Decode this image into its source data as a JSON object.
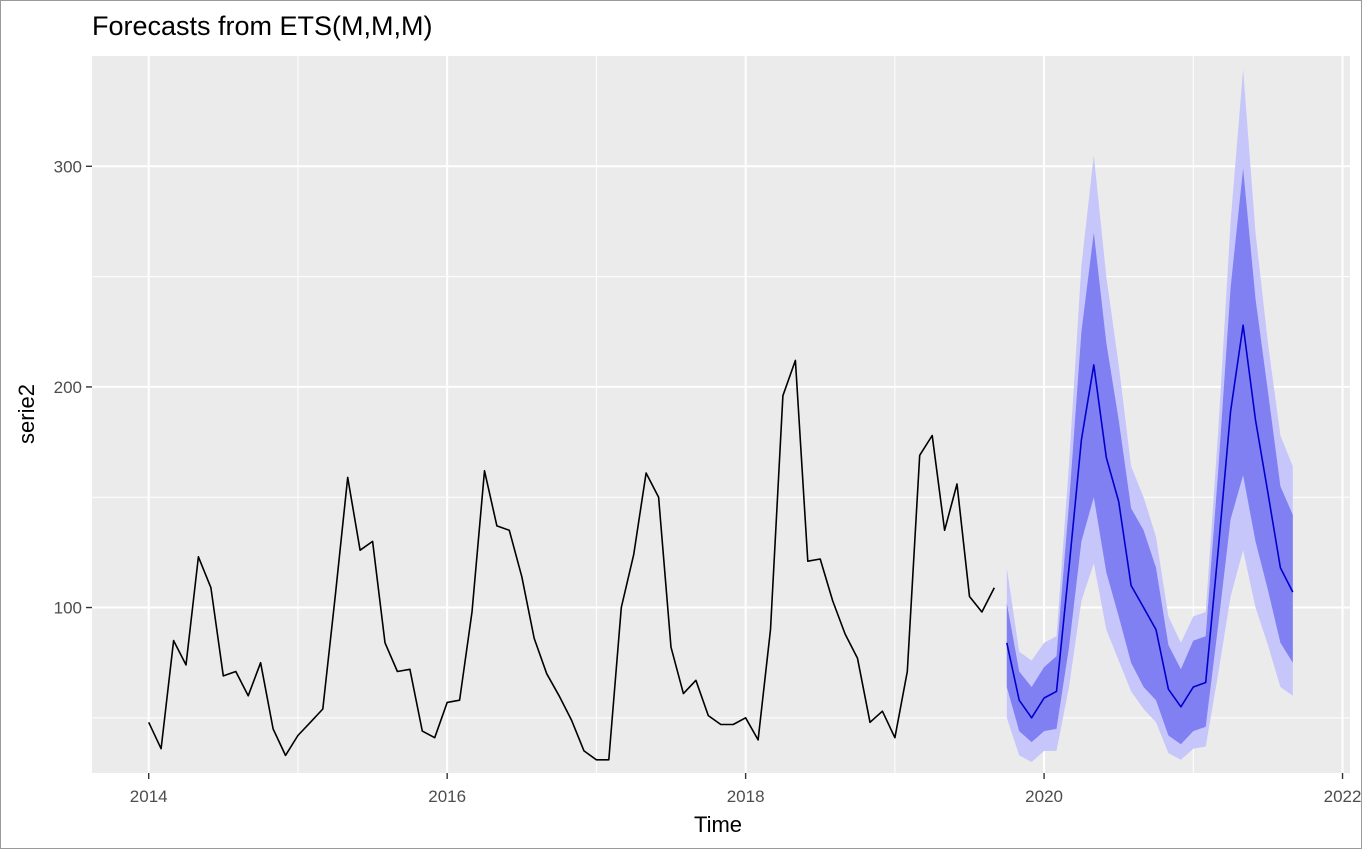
{
  "chart_data": {
    "type": "line",
    "title": "Forecasts from ETS(M,M,M)",
    "xlabel": "Time",
    "ylabel": "serie2",
    "xlim": [
      2013.62,
      2022.05
    ],
    "ylim": [
      25,
      350
    ],
    "x_ticks": [
      2014,
      2016,
      2018,
      2020,
      2022
    ],
    "x_tick_labels": [
      "2014",
      "2016",
      "2018",
      "2020",
      "2022"
    ],
    "y_ticks": [
      100,
      200,
      300
    ],
    "y_tick_labels": [
      "100",
      "200",
      "300"
    ],
    "grid": true,
    "legend": "none",
    "colors": {
      "panel": "#ebebeb",
      "grid": "#ffffff",
      "observed": "#000000",
      "forecast": "#0000cc",
      "band80": "#8080f2",
      "band95": "#c6c6fa",
      "tick": "#333333"
    },
    "series": [
      {
        "kind": "observed",
        "x_start": 2014.0,
        "step": 0.0833333,
        "values": [
          48,
          36,
          85,
          74,
          123,
          109,
          69,
          71,
          60,
          75,
          45,
          33,
          42,
          48,
          54,
          105,
          159,
          126,
          130,
          84,
          71,
          72,
          44,
          41,
          57,
          58,
          98,
          162,
          137,
          135,
          114,
          86,
          70,
          60,
          49,
          35,
          31,
          31,
          100,
          124,
          161,
          150,
          82,
          61,
          67,
          51,
          47,
          47,
          50,
          40,
          90,
          196,
          212,
          121,
          122,
          103,
          88,
          77,
          48,
          53,
          41,
          71,
          169,
          178,
          135,
          156,
          105,
          98,
          109
        ]
      },
      {
        "kind": "forecast",
        "x_start": 2019.75,
        "step": 0.0833333,
        "mean": [
          84,
          58,
          50,
          59,
          62,
          118,
          176,
          210,
          168,
          148,
          110,
          100,
          90,
          63,
          55,
          64,
          66,
          126,
          189,
          228,
          185,
          152,
          118,
          107
        ],
        "lo80": [
          64,
          44,
          39,
          44,
          45,
          82,
          130,
          150,
          116,
          96,
          75,
          64,
          58,
          42,
          38,
          44,
          46,
          92,
          140,
          160,
          130,
          108,
          84,
          75
        ],
        "hi80": [
          102,
          71,
          64,
          73,
          78,
          147,
          225,
          270,
          220,
          185,
          145,
          135,
          118,
          83,
          72,
          85,
          87,
          162,
          245,
          299,
          240,
          198,
          155,
          142
        ],
        "lo95": [
          50,
          33,
          30,
          35,
          35,
          64,
          103,
          120,
          90,
          76,
          62,
          54,
          48,
          34,
          31,
          36,
          37,
          70,
          105,
          126,
          100,
          83,
          64,
          60
        ],
        "hi95": [
          118,
          80,
          76,
          84,
          87,
          165,
          255,
          305,
          250,
          210,
          164,
          150,
          132,
          96,
          84,
          96,
          98,
          180,
          275,
          344,
          270,
          220,
          178,
          164
        ]
      }
    ]
  }
}
